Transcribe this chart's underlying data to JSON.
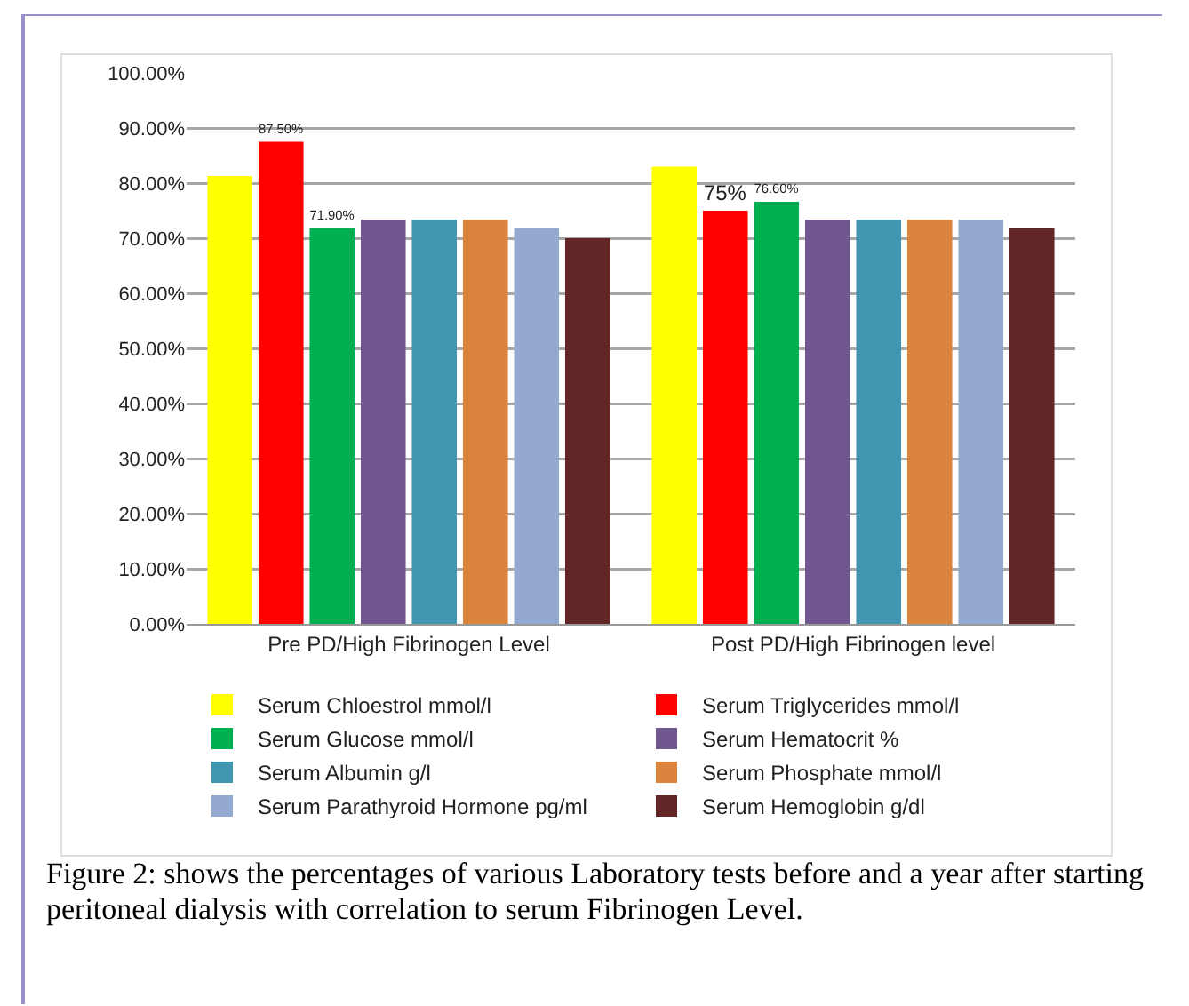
{
  "chart_data": {
    "type": "bar",
    "categories": [
      "Pre PD/High Fibrinogen Level",
      "Post PD/High Fibrinogen level"
    ],
    "series": [
      {
        "name": "Serum Chloestrol mmol/l",
        "color": "#ffff00",
        "values": [
          81.3,
          83
        ]
      },
      {
        "name": "Serum Triglycerides mmol/l",
        "color": "#ff0000",
        "values": [
          87.5,
          75
        ],
        "value_labels": [
          "87.50%",
          "75%"
        ]
      },
      {
        "name": "Serum Glucose mmol/l",
        "color": "#00b050",
        "values": [
          71.9,
          76.6
        ],
        "value_labels": [
          "71.90%",
          "76.60%"
        ]
      },
      {
        "name": "Serum Hematocrit %",
        "color": "#70578f",
        "values": [
          73.4,
          73.4
        ]
      },
      {
        "name": "Serum Albumin g/l",
        "color": "#4197b0",
        "values": [
          73.4,
          73.4
        ]
      },
      {
        "name": "Serum Phosphate mmol/l",
        "color": "#db843d",
        "values": [
          73.4,
          73.4
        ]
      },
      {
        "name": "Serum Parathyroid Hormone pg/ml",
        "color": "#93a9cf",
        "values": [
          71.9,
          73.4
        ]
      },
      {
        "name": "Serum Hemoglobin g/dl",
        "color": "#632626",
        "values": [
          70,
          71.9
        ]
      }
    ],
    "ylim": [
      0,
      100
    ],
    "yticks": [
      {
        "value": 0,
        "label": "0.00%"
      },
      {
        "value": 10,
        "label": "10.00%"
      },
      {
        "value": 20,
        "label": "20.00%"
      },
      {
        "value": 30,
        "label": "30.00%"
      },
      {
        "value": 40,
        "label": "40.00%"
      },
      {
        "value": 50,
        "label": "50.00%"
      },
      {
        "value": 60,
        "label": "60.00%"
      },
      {
        "value": 70,
        "label": "70.00%"
      },
      {
        "value": 80,
        "label": "80.00%"
      },
      {
        "value": 90,
        "label": "90.00%"
      },
      {
        "value": 100,
        "label": "100.00%"
      }
    ],
    "grid": "y",
    "legend": "bottom",
    "annotations": [
      "Figure 2: shows the percentages of various Laboratory tests before and a year after starting peritoneal dialysis with correlation to serum Fibrinogen Level."
    ]
  }
}
